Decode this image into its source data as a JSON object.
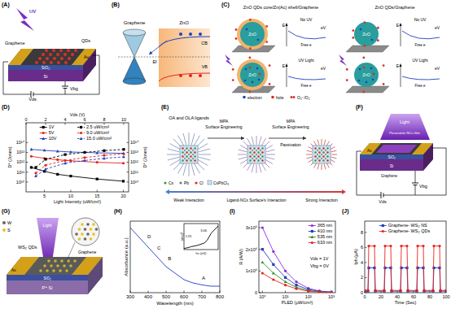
{
  "panels": {
    "A": {
      "label": "(A)",
      "texts": {
        "uv": "UV",
        "qds": "QDs",
        "au": "Au",
        "graphene": "Graphene",
        "sio2": "SiO₂",
        "si": "Si",
        "vds": "Vds",
        "vbg": "Vbg"
      }
    },
    "B": {
      "label": "(B)",
      "texts": {
        "graphene": "Graphene",
        "zno": "ZnO",
        "cb": "CB",
        "vb": "VB",
        "ef": "Ef"
      }
    },
    "C": {
      "label": "(C)",
      "texts": {
        "title1": "ZnO QDs core/Zn(Ac) shell/Graphene",
        "title2": "ZnO QDs/Graphene",
        "nouv1": "No UV",
        "uv1": "UV Light",
        "nouv2": "No UV",
        "uv2": "UV Light",
        "zno": "ZnO",
        "e": "E",
        "ev": "eV",
        "freee": "Free e",
        "electron": "electron",
        "hole": "hole",
        "o2": "O₂⁻/O₂"
      }
    },
    "D": {
      "label": "(D)"
    },
    "E": {
      "label": "(E)",
      "texts": {
        "ligands": "OA and OLA ligands",
        "mpa": "MPA",
        "se1": "Surface Engineering",
        "se2": "Surface Engineering",
        "mpa2": "MPA",
        "passivation": "Passivation",
        "weak": "Weak Interaction",
        "mid": "Ligand-NCs Surface's Interaction",
        "strong": "Strong Interaction",
        "cs": "Cs",
        "pb": "Pb",
        "cl": "Cl",
        "cspbcl3": "CsPbCl₃"
      }
    },
    "F": {
      "label": "(F)",
      "texts": {
        "light": "Light",
        "film": "Perovskite NCs film",
        "au": "Au",
        "graphene": "Graphene",
        "sio2": "SiO₂",
        "si": "Si",
        "vds": "Vds",
        "vbg": "Vbg"
      }
    },
    "G": {
      "label": "(G)",
      "texts": {
        "w": "W",
        "s": "S",
        "qds": "WS₂ QDs",
        "light": "Light",
        "au": "Au",
        "graphene": "Graphene",
        "sio2": "SiO₂",
        "psi": "P⁺ Si"
      }
    },
    "H": {
      "label": "(H)"
    },
    "I": {
      "label": "(I)"
    },
    "J": {
      "label": "(J)"
    }
  },
  "chart_data": [
    {
      "type": "line",
      "x_label": "Light Intensity (uW/cm²)",
      "y_label": "D* (Jones)",
      "x2_label": "Vds (V)",
      "y2_label": "D* (Jones)",
      "log": "y",
      "grid": false,
      "legend": "upper center",
      "xlim": [
        1.5,
        21
      ],
      "xticks": [
        5,
        10,
        15,
        20
      ],
      "x2lim": [
        0,
        10.5
      ],
      "x2ticks": [
        0,
        2,
        4,
        6,
        8,
        10
      ],
      "ylim": [
        1000000000.0,
        1e+16
      ],
      "yticks": [
        {
          "value": 10000000000.0,
          "label": "10¹⁰"
        },
        {
          "value": 100000000000.0,
          "label": "10¹¹"
        },
        {
          "value": 1000000000000.0,
          "label": "10¹²"
        },
        {
          "value": 10000000000000.0,
          "label": "10¹³"
        },
        {
          "value": 100000000000000.0,
          "label": "10¹⁴"
        }
      ],
      "y2lim": [
        1000000000.0,
        1e+16
      ],
      "y2ticks": [
        {
          "value": 10000000000.0,
          "label": "10¹⁰"
        },
        {
          "value": 100000000000.0,
          "label": "10¹¹"
        },
        {
          "value": 1000000000000.0,
          "label": "10¹²"
        },
        {
          "value": 10000000000000.0,
          "label": "10¹³"
        },
        {
          "value": 100000000000000.0,
          "label": "10¹⁴"
        }
      ],
      "series": [
        {
          "name": "1V",
          "color": "#000000",
          "marker": "square",
          "line_style": "solid",
          "x": [
            2.5,
            5,
            7.5,
            10,
            15,
            20
          ],
          "values": [
            300000000000.0,
            120000000000.0,
            60000000000.0,
            40000000000.0,
            20000000000.0,
            12000000000.0
          ]
        },
        {
          "name": "5V",
          "color": "#e8221c",
          "marker": "circle",
          "line_style": "solid",
          "x": [
            2.5,
            5,
            7.5,
            10,
            15,
            20
          ],
          "values": [
            4000000000000.0,
            2500000000000.0,
            1800000000000.0,
            1400000000000.0,
            1000000000000.0,
            800000000000.0
          ]
        },
        {
          "name": "10V",
          "color": "#1f3fbf",
          "marker": "triangle",
          "line_style": "solid",
          "x": [
            2.5,
            5,
            7.5,
            10,
            15,
            20
          ],
          "values": [
            20000000000000.0,
            16000000000000.0,
            13000000000000.0,
            11000000000000.0,
            9000000000000.0,
            8000000000000.0
          ]
        },
        {
          "name": "2.5 uW/cm²",
          "color": "#000000",
          "marker": "square",
          "line_style": "dashed",
          "axis": "y2",
          "x": [
            1,
            2,
            4,
            6,
            8,
            10
          ],
          "values": [
            300000000000.0,
            2000000000000.0,
            6000000000000.0,
            10000000000000.0,
            15000000000000.0,
            20000000000000.0
          ]
        },
        {
          "name": "9.0 uW/cm²",
          "color": "#e8221c",
          "marker": "circle",
          "line_style": "dashed",
          "axis": "y2",
          "x": [
            1,
            2,
            4,
            6,
            8,
            10
          ],
          "values": [
            80000000000.0,
            500000000000.0,
            1500000000000.0,
            3000000000000.0,
            5000000000000.0,
            7000000000000.0
          ]
        },
        {
          "name": "15.0 uW/cm²",
          "color": "#1f3fbf",
          "marker": "triangle",
          "line_style": "dashed",
          "axis": "y2",
          "x": [
            1,
            2,
            4,
            6,
            8,
            10
          ],
          "values": [
            40000000000.0,
            200000000000.0,
            800000000000.0,
            1500000000000.0,
            2500000000000.0,
            3500000000000.0
          ]
        }
      ]
    },
    {
      "type": "line",
      "x_label": "Wavelength (nm)",
      "y_label": "Absorbance (a.u.)",
      "tick_labels": "x",
      "grid": false,
      "xlim": [
        300,
        800
      ],
      "xticks": [
        300,
        400,
        500,
        600,
        700,
        800
      ],
      "ylim": [
        0,
        1.1
      ],
      "x": [
        300,
        350,
        400,
        450,
        500,
        550,
        600,
        650,
        700,
        750,
        800
      ],
      "values": [
        1.0,
        0.85,
        0.7,
        0.55,
        0.4,
        0.3,
        0.2,
        0.15,
        0.12,
        0.1,
        0.1
      ],
      "color": "#1f3fbf",
      "annotations": [
        {
          "text": "A",
          "x": 700,
          "y": 0.2
        },
        {
          "text": "B",
          "x": 510,
          "y": 0.5
        },
        {
          "text": "C",
          "x": 450,
          "y": 0.66
        },
        {
          "text": "D",
          "x": 395,
          "y": 0.84
        }
      ]
    },
    {
      "type": "line",
      "x_label": "hν (eV)",
      "y_label": "(αhν)²",
      "tick_labels": false,
      "grid": false,
      "xlim": [
        1.5,
        4
      ],
      "ylim": [
        0,
        1.1
      ],
      "x": [
        1.5,
        1.8,
        2.0,
        2.5,
        3.0,
        3.2,
        3.5,
        4.0
      ],
      "values": [
        0.05,
        0.08,
        0.12,
        0.18,
        0.28,
        0.4,
        0.7,
        1.0
      ],
      "color": "#000000",
      "annotations": [
        {
          "text": "1.91",
          "x": 1.6,
          "y": 0.5
        },
        {
          "text": "3.06",
          "x": 2.7,
          "y": 0.75
        }
      ]
    },
    {
      "type": "line",
      "x_label": "PLED (μW/cm²)",
      "y_label": "R (A/W)",
      "log": "x",
      "grid": false,
      "legend": "upper right",
      "xlim": [
        0.7,
        1500
      ],
      "xticks": [
        {
          "value": 1,
          "label": "10⁰"
        },
        {
          "value": 10,
          "label": "10¹"
        },
        {
          "value": 100,
          "label": "10²"
        },
        {
          "value": 1000,
          "label": "10³"
        }
      ],
      "ylim": [
        0,
        3300000
      ],
      "yticks": [
        0,
        {
          "value": 1000000,
          "label": "1x10⁶"
        },
        {
          "value": 2000000,
          "label": "2x10⁶"
        },
        {
          "value": 3000000,
          "label": "3x10⁶"
        }
      ],
      "x": [
        1,
        3,
        10,
        30,
        100,
        300,
        1000
      ],
      "series": [
        {
          "name": "365 nm",
          "color": "#8a2be2",
          "marker": "circle",
          "line_style": "solid",
          "values": [
            3000000,
            1900000,
            1000000,
            500000,
            200000,
            80000,
            30000
          ]
        },
        {
          "name": "410 nm",
          "color": "#1f3fbf",
          "marker": "square",
          "line_style": "solid",
          "values": [
            2000000,
            1300000,
            700000,
            350000,
            150000,
            60000,
            20000
          ]
        },
        {
          "name": "535 nm",
          "color": "#2e8b2e",
          "marker": "triangle",
          "line_style": "solid",
          "values": [
            1400000,
            900000,
            500000,
            250000,
            100000,
            40000,
            15000
          ]
        },
        {
          "name": "633 nm",
          "color": "#e8221c",
          "marker": "circle",
          "line_style": "solid",
          "values": [
            900000,
            600000,
            350000,
            180000,
            70000,
            30000,
            10000
          ]
        }
      ],
      "annotations": [
        {
          "text": "Vds = 1V",
          "x": 120,
          "y": 1500000
        },
        {
          "text": "Vbg = 0V",
          "x": 120,
          "y": 1150000
        }
      ]
    },
    {
      "type": "line",
      "x_label": "Time (Sec)",
      "y_label": "Iph (μA)",
      "grid": false,
      "legend": "upper center",
      "xlim": [
        0,
        100
      ],
      "xticks": [
        0,
        20,
        40,
        60,
        80,
        100
      ],
      "ylim": [
        0,
        9.5
      ],
      "yticks": [
        0,
        2,
        4,
        6,
        8
      ],
      "x": [
        0,
        4,
        5,
        12,
        13,
        24,
        25,
        32,
        33,
        44,
        45,
        52,
        53,
        64,
        65,
        72,
        73,
        84,
        85,
        92,
        93,
        100
      ],
      "series": [
        {
          "name": "Graphene- WS₂ NS",
          "color": "#1f3fbf",
          "marker": "square",
          "line_style": "solid",
          "values": [
            0.2,
            0.2,
            3.3,
            3.3,
            0.2,
            0.2,
            3.3,
            3.3,
            0.2,
            0.2,
            3.3,
            3.3,
            0.2,
            0.2,
            3.3,
            3.3,
            0.2,
            0.2,
            3.3,
            3.3,
            0.2,
            0.2
          ]
        },
        {
          "name": "Graphene- WS₂ QDs",
          "color": "#e8221c",
          "marker": "circle",
          "line_style": "solid",
          "values": [
            0.3,
            0.3,
            6.2,
            6.2,
            0.3,
            0.3,
            6.2,
            6.2,
            0.3,
            0.3,
            6.2,
            6.2,
            0.3,
            0.3,
            6.2,
            6.2,
            0.3,
            0.3,
            6.2,
            6.2,
            0.3,
            0.3
          ]
        }
      ]
    }
  ]
}
